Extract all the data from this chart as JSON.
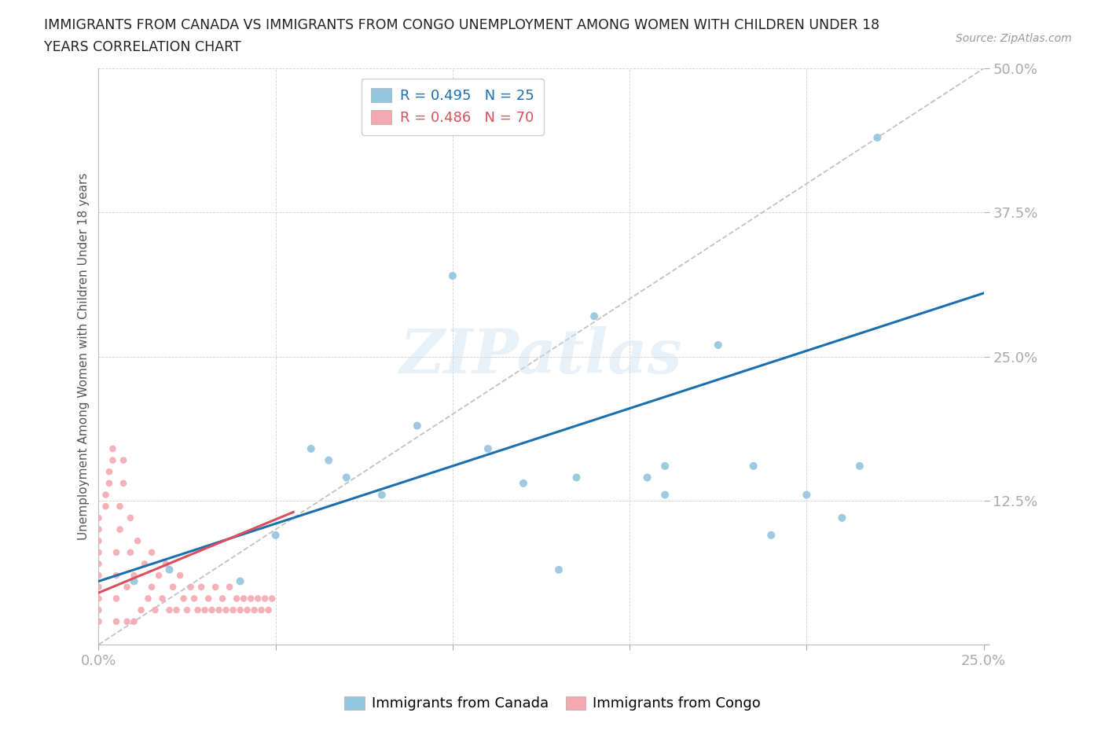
{
  "title_line1": "IMMIGRANTS FROM CANADA VS IMMIGRANTS FROM CONGO UNEMPLOYMENT AMONG WOMEN WITH CHILDREN UNDER 18",
  "title_line2": "YEARS CORRELATION CHART",
  "source_text": "Source: ZipAtlas.com",
  "ylabel": "Unemployment Among Women with Children Under 18 years",
  "xlim": [
    0.0,
    0.25
  ],
  "ylim": [
    0.0,
    0.5
  ],
  "xticks": [
    0.0,
    0.05,
    0.1,
    0.15,
    0.2,
    0.25
  ],
  "yticks": [
    0.0,
    0.125,
    0.25,
    0.375,
    0.5
  ],
  "xticklabels": [
    "0.0%",
    "",
    "",
    "",
    "",
    "25.0%"
  ],
  "yticklabels": [
    "",
    "12.5%",
    "25.0%",
    "37.5%",
    "50.0%"
  ],
  "canada_R": 0.495,
  "canada_N": 25,
  "congo_R": 0.486,
  "congo_N": 70,
  "canada_color": "#92c5de",
  "congo_color": "#f4a9b0",
  "canada_line_color": "#1a6faf",
  "congo_line_color": "#d94f5c",
  "ref_line_color": "#bbbbbb",
  "legend_canada": "Immigrants from Canada",
  "legend_congo": "Immigrants from Congo",
  "background_color": "#ffffff",
  "watermark_text": "ZIPatlas",
  "canada_x": [
    0.01,
    0.02,
    0.04,
    0.05,
    0.06,
    0.065,
    0.07,
    0.08,
    0.09,
    0.1,
    0.11,
    0.12,
    0.13,
    0.135,
    0.14,
    0.155,
    0.16,
    0.175,
    0.185,
    0.19,
    0.2,
    0.21,
    0.215,
    0.22,
    0.16
  ],
  "canada_y": [
    0.055,
    0.065,
    0.055,
    0.095,
    0.17,
    0.16,
    0.145,
    0.13,
    0.19,
    0.32,
    0.17,
    0.14,
    0.065,
    0.145,
    0.285,
    0.145,
    0.155,
    0.26,
    0.155,
    0.095,
    0.13,
    0.11,
    0.155,
    0.44,
    0.13
  ],
  "congo_x": [
    0.0,
    0.0,
    0.0,
    0.0,
    0.0,
    0.0,
    0.0,
    0.0,
    0.0,
    0.0,
    0.002,
    0.002,
    0.003,
    0.003,
    0.004,
    0.004,
    0.005,
    0.005,
    0.005,
    0.005,
    0.006,
    0.006,
    0.007,
    0.007,
    0.008,
    0.008,
    0.009,
    0.009,
    0.01,
    0.01,
    0.011,
    0.012,
    0.013,
    0.014,
    0.015,
    0.015,
    0.016,
    0.017,
    0.018,
    0.019,
    0.02,
    0.021,
    0.022,
    0.023,
    0.024,
    0.025,
    0.026,
    0.027,
    0.028,
    0.029,
    0.03,
    0.031,
    0.032,
    0.033,
    0.034,
    0.035,
    0.036,
    0.037,
    0.038,
    0.039,
    0.04,
    0.041,
    0.042,
    0.043,
    0.044,
    0.045,
    0.046,
    0.047,
    0.048,
    0.049
  ],
  "congo_y": [
    0.02,
    0.03,
    0.04,
    0.05,
    0.06,
    0.07,
    0.08,
    0.09,
    0.1,
    0.11,
    0.12,
    0.13,
    0.14,
    0.15,
    0.16,
    0.17,
    0.02,
    0.04,
    0.06,
    0.08,
    0.1,
    0.12,
    0.14,
    0.16,
    0.02,
    0.05,
    0.08,
    0.11,
    0.02,
    0.06,
    0.09,
    0.03,
    0.07,
    0.04,
    0.08,
    0.05,
    0.03,
    0.06,
    0.04,
    0.07,
    0.03,
    0.05,
    0.03,
    0.06,
    0.04,
    0.03,
    0.05,
    0.04,
    0.03,
    0.05,
    0.03,
    0.04,
    0.03,
    0.05,
    0.03,
    0.04,
    0.03,
    0.05,
    0.03,
    0.04,
    0.03,
    0.04,
    0.03,
    0.04,
    0.03,
    0.04,
    0.03,
    0.04,
    0.03,
    0.04
  ],
  "canada_line_x": [
    0.0,
    0.25
  ],
  "canada_line_y": [
    0.055,
    0.305
  ],
  "congo_line_x": [
    0.0,
    0.055
  ],
  "congo_line_y": [
    0.045,
    0.115
  ],
  "ref_line_x": [
    0.0,
    0.25
  ],
  "ref_line_y": [
    0.0,
    0.5
  ]
}
